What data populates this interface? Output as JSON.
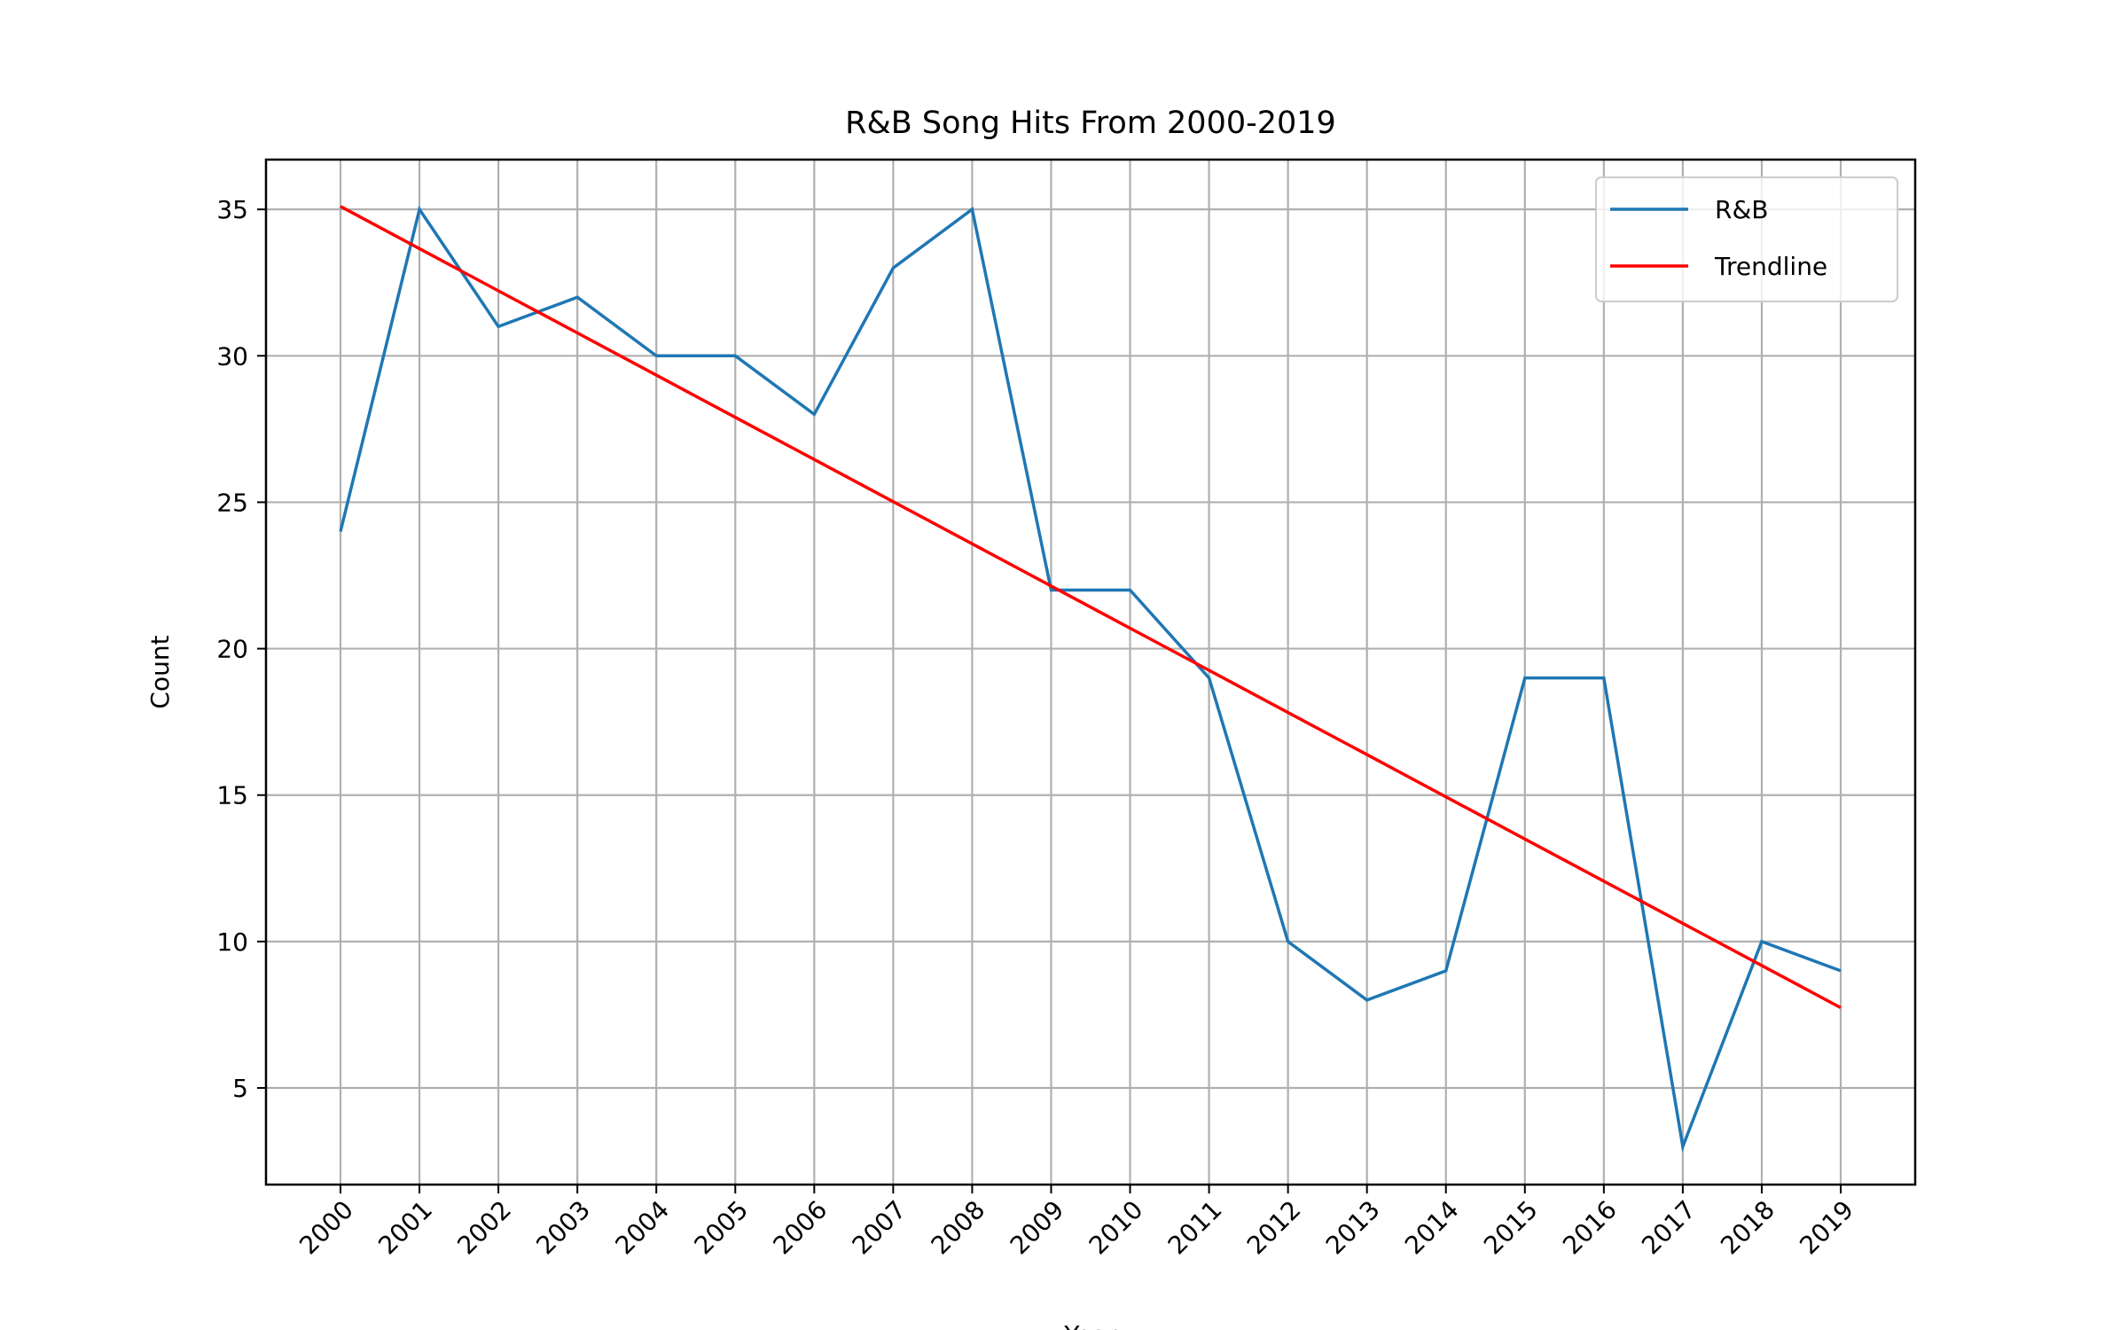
{
  "chart_data": {
    "type": "line",
    "title": "R&B Song Hits From 2000-2019",
    "xlabel": "Year",
    "ylabel": "Count",
    "categories": [
      "2000",
      "2001",
      "2002",
      "2003",
      "2004",
      "2005",
      "2006",
      "2007",
      "2008",
      "2009",
      "2010",
      "2011",
      "2012",
      "2013",
      "2014",
      "2015",
      "2016",
      "2017",
      "2018",
      "2019"
    ],
    "series": [
      {
        "name": "R&B",
        "color": "#1f77b4",
        "values": [
          24,
          35,
          31,
          32,
          30,
          30,
          28,
          33,
          35,
          22,
          22,
          19,
          10,
          8,
          9,
          19,
          19,
          3,
          10,
          9
        ]
      },
      {
        "name": "Trendline",
        "color": "#ff0000",
        "values": [
          35.1,
          33.66,
          32.22,
          30.78,
          29.34,
          27.9,
          26.46,
          25.02,
          23.58,
          22.14,
          20.7,
          19.26,
          17.82,
          16.38,
          14.94,
          13.5,
          12.06,
          10.62,
          9.18,
          7.74
        ]
      }
    ],
    "ylim": [
      1.7,
      36.7
    ],
    "yticks": [
      5,
      10,
      15,
      20,
      25,
      30,
      35
    ],
    "grid": true,
    "legend_position": "top-right"
  }
}
